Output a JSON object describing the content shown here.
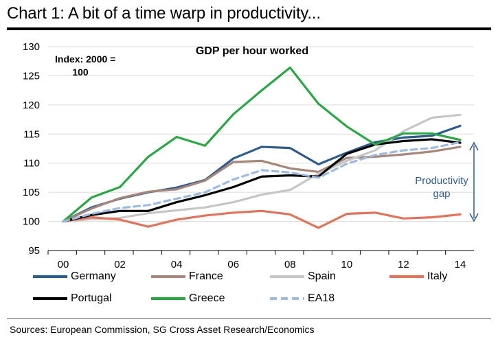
{
  "title": "Chart 1: A bit of a time warp in productivity...",
  "source": "Sources: European Commission, SG Cross Asset Research/Economics",
  "chart_data": {
    "type": "line",
    "subtitle": "GDP per hour worked",
    "index_note": [
      "Index: 2000 =",
      "100"
    ],
    "annotation": [
      "Productivity",
      "gap"
    ],
    "x": [
      0,
      1,
      2,
      3,
      4,
      5,
      6,
      7,
      8,
      9,
      10,
      11,
      12,
      13,
      14
    ],
    "xticks": [
      "00",
      "02",
      "04",
      "06",
      "08",
      "10",
      "12",
      "14"
    ],
    "yticks": [
      "95",
      "100",
      "105",
      "110",
      "115",
      "120",
      "125",
      "130"
    ],
    "ylim": [
      95,
      130
    ],
    "series": [
      {
        "name": "Germany",
        "color": "#2e5b8f",
        "dash": false,
        "values": [
          100,
          102.4,
          103.9,
          105,
          105.8,
          107.1,
          110.8,
          112.8,
          112.6,
          109.8,
          111.8,
          113.6,
          114.4,
          114.7,
          116.4
        ]
      },
      {
        "name": "France",
        "color": "#a8877a",
        "dash": false,
        "values": [
          100,
          102.2,
          104,
          105.1,
          105.5,
          107,
          110.2,
          110.4,
          109.1,
          108.5,
          110.9,
          111.1,
          111.5,
          112,
          112.8
        ]
      },
      {
        "name": "Spain",
        "color": "#c6c6c6",
        "dash": false,
        "values": [
          100,
          100.4,
          100.6,
          101.4,
          101.9,
          102.4,
          103.3,
          104.6,
          105.4,
          108.2,
          110.4,
          112.2,
          115.5,
          117.8,
          118.3
        ]
      },
      {
        "name": "Italy",
        "color": "#e2735a",
        "dash": false,
        "values": [
          100,
          100.7,
          100.3,
          99.1,
          100.3,
          101,
          101.5,
          101.8,
          101.2,
          98.9,
          101.3,
          101.5,
          100.5,
          100.7,
          101.2
        ]
      },
      {
        "name": "Portugal",
        "color": "#000000",
        "dash": false,
        "values": [
          100,
          101.1,
          101.8,
          101.8,
          103.3,
          104.5,
          105.9,
          107.7,
          107.9,
          107.7,
          111.6,
          113.2,
          113.8,
          114.1,
          113.5
        ]
      },
      {
        "name": "Greece",
        "color": "#2aa745",
        "dash": false,
        "values": [
          100,
          104.1,
          105.9,
          111.1,
          114.5,
          113,
          118.4,
          122.5,
          126.4,
          120.2,
          116.3,
          113.2,
          115.1,
          115.1,
          114
        ]
      },
      {
        "name": "EA18",
        "color": "#9dbbe0",
        "dash": true,
        "values": [
          100,
          101.3,
          102.3,
          102.8,
          103.9,
          105,
          107.2,
          108.8,
          108.4,
          107.5,
          109.9,
          111.4,
          112.2,
          112.6,
          113.6
        ]
      }
    ]
  }
}
